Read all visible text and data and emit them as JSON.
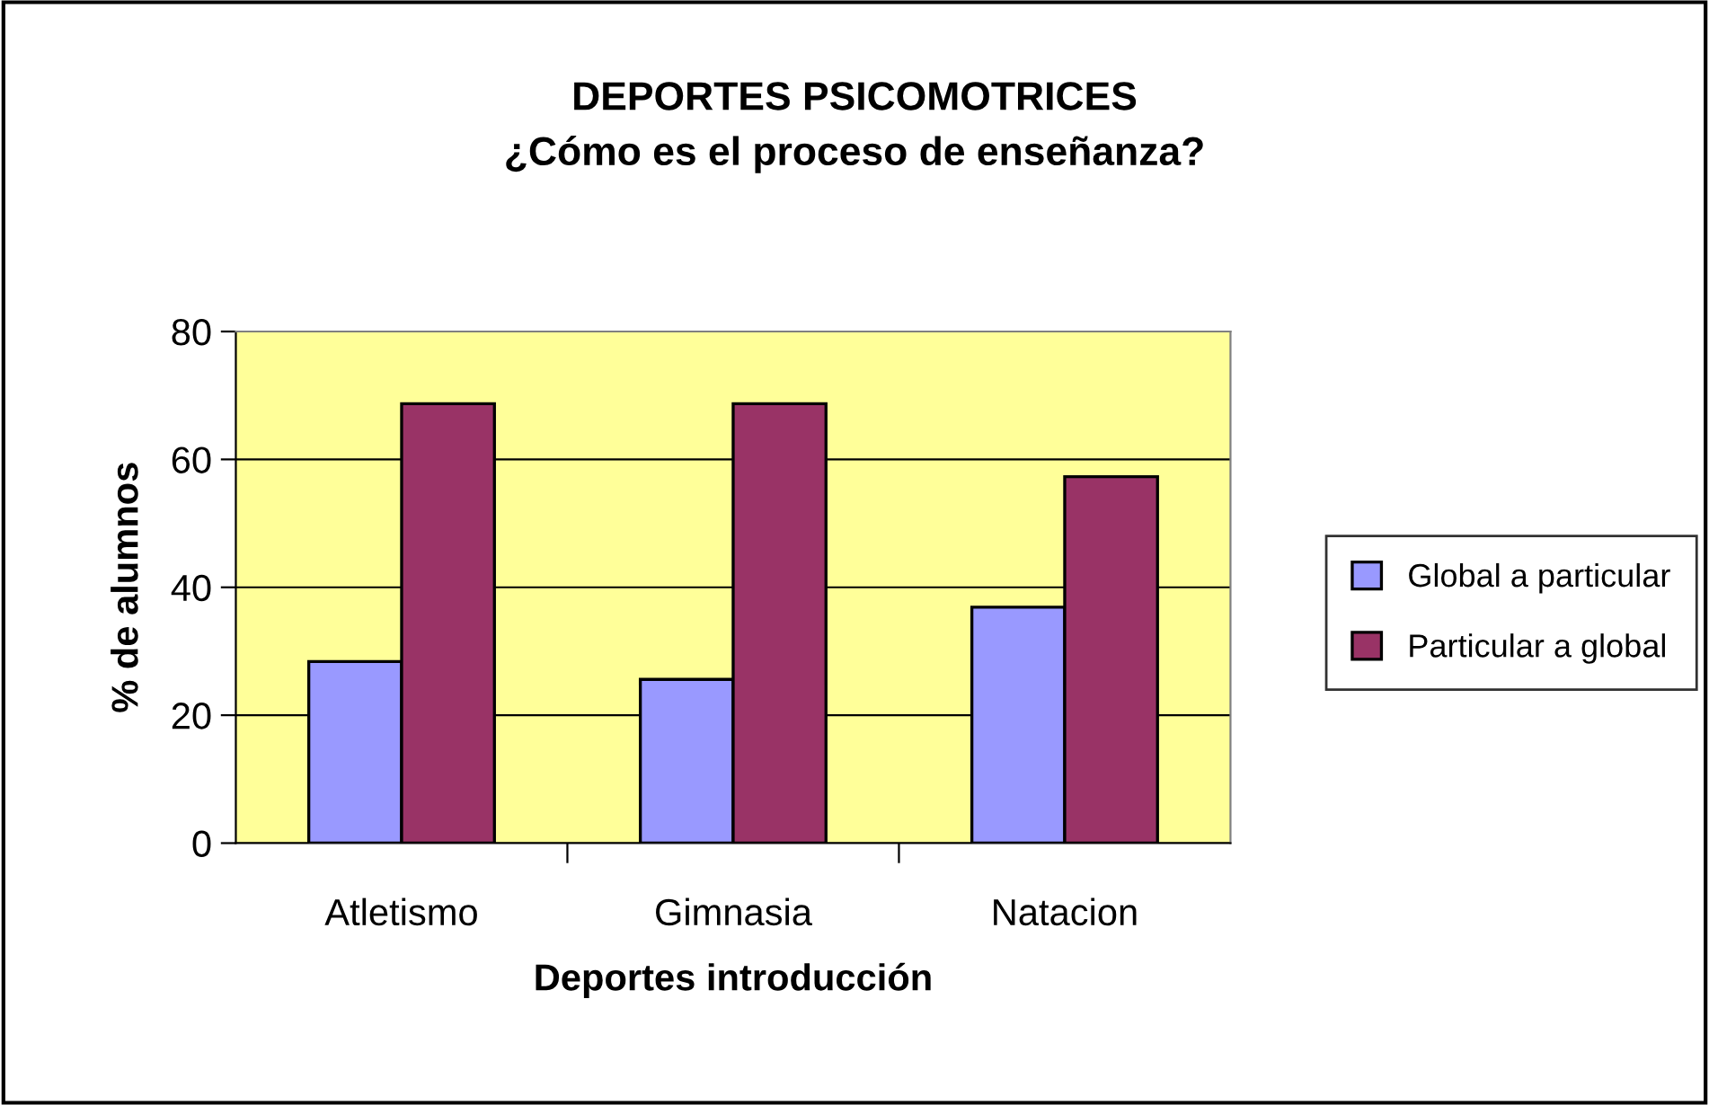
{
  "chart_data": {
    "type": "bar",
    "title": "DEPORTES PSICOMOTRICES\n¿Cómo es el proceso de enseñanza?",
    "xlabel": "Deportes introducción",
    "ylabel": "% de alumnos",
    "categories": [
      "Atletismo",
      "Gimnasia",
      "Natacion"
    ],
    "series": [
      {
        "name": "Global a particular",
        "color": "#9999ff",
        "values": [
          28.4,
          25.6,
          36.9
        ]
      },
      {
        "name": "Particular a global",
        "color": "#993366",
        "values": [
          68.7,
          68.7,
          57.3
        ]
      }
    ],
    "ylim": [
      0,
      80
    ],
    "yticks": [
      0,
      20,
      40,
      60,
      80
    ],
    "grid": "y",
    "legend": "right"
  }
}
